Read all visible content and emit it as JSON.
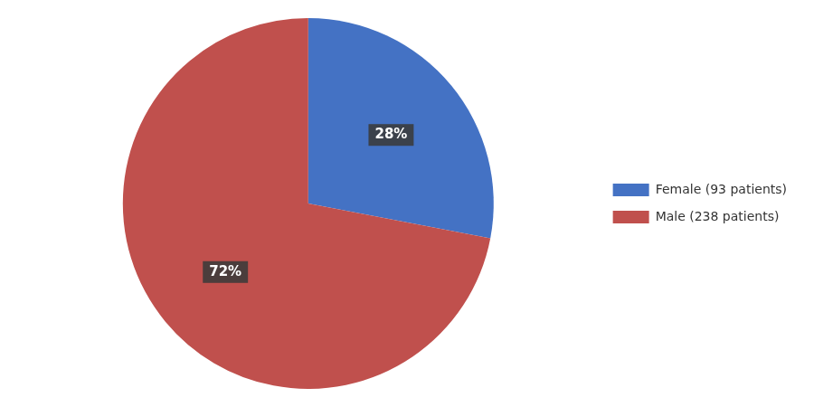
{
  "chart_data": {
    "type": "pie",
    "categories": [
      "Female (93 patients)",
      "Male (238 patients)"
    ],
    "values": [
      28,
      72
    ],
    "colors": [
      "#4472C4",
      "#C0504D"
    ],
    "data_labels": true,
    "value_labels": [
      "28%",
      "72%"
    ],
    "legend": "right"
  }
}
